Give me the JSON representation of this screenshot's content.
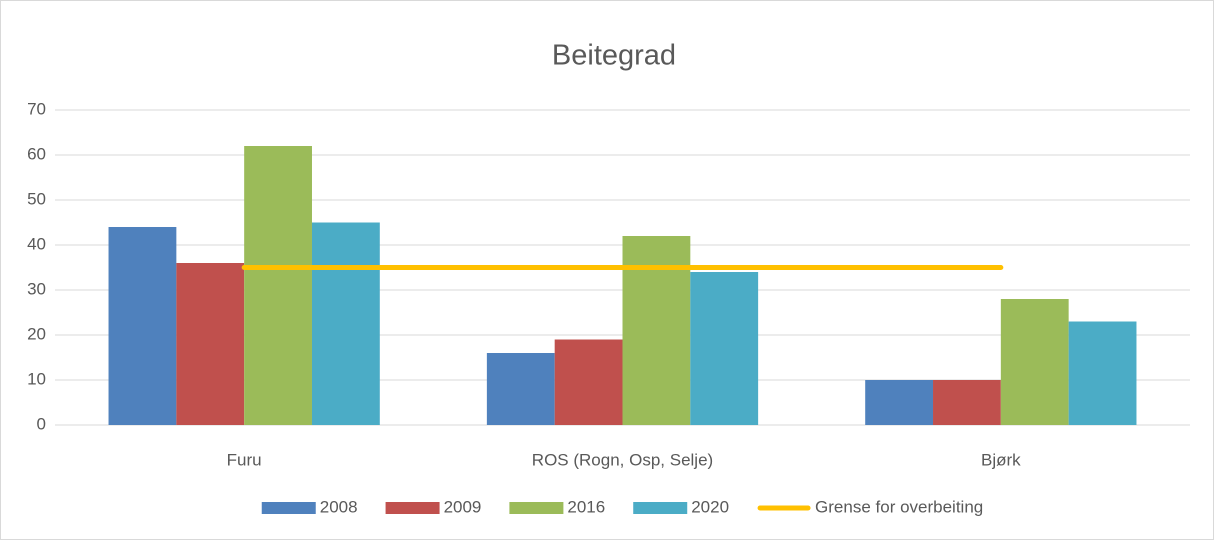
{
  "chart_data": {
    "type": "bar",
    "title": "Beitegrad",
    "categories": [
      "Furu",
      "ROS (Rogn, Osp, Selje)",
      "Bjørk"
    ],
    "series": [
      {
        "name": "2008",
        "color": "#4f81bd",
        "values": [
          44,
          16,
          10
        ]
      },
      {
        "name": "2009",
        "color": "#c0504d",
        "values": [
          36,
          19,
          10
        ]
      },
      {
        "name": "2016",
        "color": "#9bbb59",
        "values": [
          62,
          42,
          28
        ]
      },
      {
        "name": "2020",
        "color": "#4bacc6",
        "values": [
          45,
          34,
          23
        ]
      },
      {
        "name": "Grense for overbeiting",
        "type": "line",
        "color": "#ffc000",
        "values": [
          35,
          35,
          35
        ]
      }
    ],
    "ylim": [
      0,
      70
    ],
    "yticks": [
      0,
      10,
      20,
      30,
      40,
      50,
      60,
      70
    ],
    "grid": true,
    "legend": "bottom"
  }
}
